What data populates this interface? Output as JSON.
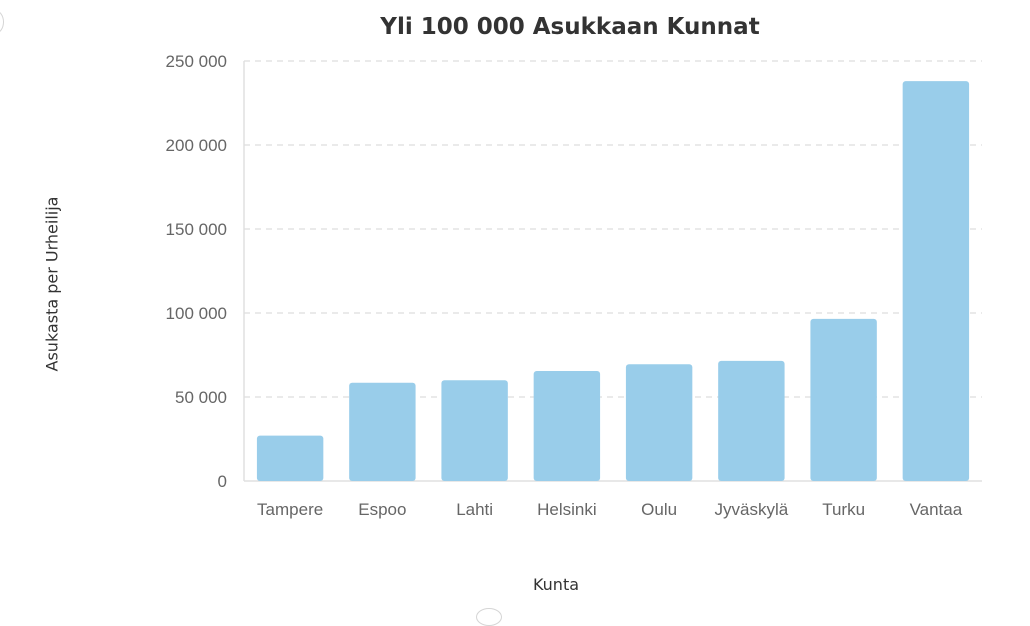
{
  "colors": {
    "bar": "#99cdea",
    "text": "#333333",
    "tick": "#666666"
  },
  "chart_data": {
    "type": "bar",
    "title": "Yli 100 000 Asukkaan Kunnat",
    "xlabel": "Kunta",
    "ylabel": "Asukasta per Urheilija",
    "categories": [
      "Tampere",
      "Espoo",
      "Lahti",
      "Helsinki",
      "Oulu",
      "Jyväskylä",
      "Turku",
      "Vantaa"
    ],
    "values": [
      27000,
      58500,
      60000,
      65500,
      69500,
      71500,
      96500,
      238000
    ],
    "ylim": [
      0,
      250000
    ],
    "yticks": [
      0,
      50000,
      100000,
      150000,
      200000,
      250000
    ],
    "ytick_labels": [
      "0",
      "50 000",
      "100 000",
      "150 000",
      "200 000",
      "250 000"
    ],
    "grid": true,
    "legend": "none"
  }
}
